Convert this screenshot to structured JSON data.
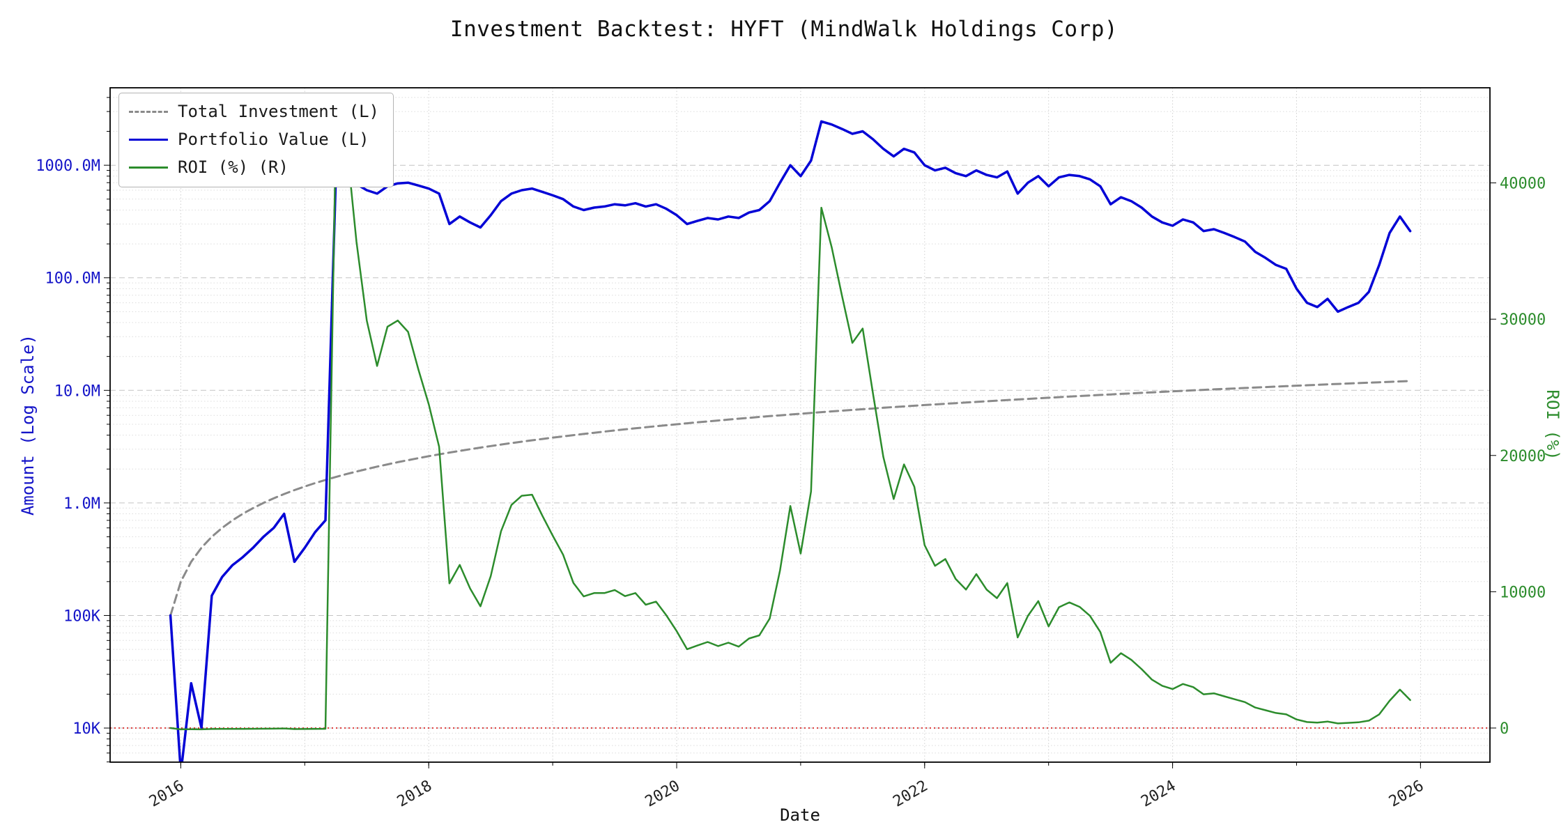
{
  "title": "Investment Backtest: HYFT (MindWalk Holdings Corp)",
  "axes": {
    "x_label": "Date",
    "left_label": "Amount (Log Scale)",
    "right_label": "ROI (%)"
  },
  "colors": {
    "portfolio": "#0404d6",
    "investment": "#8a8a8a",
    "roi": "#2c8c2c",
    "zero_line": "#d40000",
    "left_axis_text": "#1414c8",
    "right_axis_text": "#2c8c2c"
  },
  "legend": [
    {
      "label": "Total Investment (L)",
      "color": "#8a8a8a",
      "dash": true
    },
    {
      "label": "Portfolio Value (L)",
      "color": "#0404d6",
      "dash": false
    },
    {
      "label": "ROI (%) (R)",
      "color": "#2c8c2c",
      "dash": false
    }
  ],
  "chart_data": {
    "type": "line",
    "title": "Investment Backtest: HYFT (MindWalk Holdings Corp)",
    "xlabel": "Date",
    "x_start": 2015.917,
    "x_step": 0.0833333,
    "x_axis_range": [
      2015.43,
      2026.56
    ],
    "grid_years": [
      2016,
      2017,
      2018,
      2019,
      2020,
      2021,
      2022,
      2023,
      2024,
      2025,
      2026
    ],
    "x_ticks": [
      {
        "label": "2016",
        "value": 2016
      },
      {
        "label": "2018",
        "value": 2018
      },
      {
        "label": "2020",
        "value": 2020
      },
      {
        "label": "2022",
        "value": 2022
      },
      {
        "label": "2024",
        "value": 2024
      },
      {
        "label": "2026",
        "value": 2026
      }
    ],
    "left_axis": {
      "scale": "log",
      "range_log10": [
        3.697,
        9.688
      ],
      "ticks": [
        {
          "label": "10K",
          "value": 10000
        },
        {
          "label": "100K",
          "value": 100000
        },
        {
          "label": "1.0M",
          "value": 1000000
        },
        {
          "label": "10.0M",
          "value": 10000000
        },
        {
          "label": "100.0M",
          "value": 100000000
        },
        {
          "label": "1000.0M",
          "value": 1000000000
        }
      ]
    },
    "right_axis": {
      "scale": "linear",
      "range": [
        -2505,
        46980
      ],
      "ticks": [
        {
          "label": "0",
          "value": 0
        },
        {
          "label": "10000",
          "value": 10000
        },
        {
          "label": "20000",
          "value": 20000
        },
        {
          "label": "30000",
          "value": 30000
        },
        {
          "label": "40000",
          "value": 40000
        }
      ]
    },
    "zero_line": {
      "axis": "right",
      "value": 0
    },
    "left_values_unit": "USD millions",
    "right_values_unit": "percent",
    "series": [
      {
        "id": "investment",
        "name": "Total Investment (L)",
        "axis": "left",
        "scale": 1000000,
        "color": "#8a8a8a",
        "values": [
          0.1,
          0.2,
          0.3,
          0.4,
          0.5,
          0.6,
          0.7,
          0.8,
          0.9,
          1.0,
          1.1,
          1.2,
          1.3,
          1.4,
          1.5,
          1.6,
          1.7,
          1.8,
          1.9,
          2.0,
          2.1,
          2.2,
          2.3,
          2.4,
          2.5,
          2.6,
          2.7,
          2.8,
          2.9,
          3.0,
          3.1,
          3.2,
          3.3,
          3.4,
          3.5,
          3.6,
          3.7,
          3.8,
          3.9,
          4.0,
          4.1,
          4.2,
          4.3,
          4.4,
          4.5,
          4.6,
          4.7,
          4.8,
          4.9,
          5.0,
          5.1,
          5.2,
          5.3,
          5.4,
          5.5,
          5.6,
          5.7,
          5.8,
          5.9,
          6.0,
          6.1,
          6.2,
          6.3,
          6.4,
          6.5,
          6.6,
          6.7,
          6.8,
          6.9,
          7.0,
          7.1,
          7.2,
          7.3,
          7.4,
          7.5,
          7.6,
          7.7,
          7.8,
          7.9,
          8.0,
          8.1,
          8.2,
          8.3,
          8.4,
          8.5,
          8.6,
          8.7,
          8.8,
          8.9,
          9.0,
          9.1,
          9.2,
          9.3,
          9.4,
          9.5,
          9.6,
          9.7,
          9.8,
          9.9,
          10.0,
          10.1,
          10.2,
          10.3,
          10.4,
          10.5,
          10.6,
          10.7,
          10.8,
          10.9,
          11.0,
          11.1,
          11.2,
          11.3,
          11.4,
          11.5,
          11.6,
          11.7,
          11.8,
          11.9,
          12.0,
          12.1
        ]
      },
      {
        "id": "portfolio",
        "name": "Portfolio Value (L)",
        "axis": "left",
        "scale": 1000000,
        "color": "#0404d6",
        "values": [
          0.1,
          0.004,
          0.025,
          0.01,
          0.15,
          0.22,
          0.28,
          0.33,
          0.4,
          0.5,
          0.6,
          0.8,
          0.3,
          0.4,
          0.55,
          0.7,
          740,
          780,
          680,
          600,
          560,
          650,
          690,
          700,
          660,
          620,
          560,
          300,
          350,
          310,
          280,
          360,
          480,
          560,
          600,
          620,
          580,
          540,
          500,
          430,
          400,
          420,
          430,
          450,
          440,
          460,
          430,
          450,
          410,
          360,
          300,
          320,
          340,
          330,
          350,
          340,
          380,
          400,
          480,
          700,
          1000,
          800,
          1100,
          2450,
          2300,
          2100,
          1900,
          2000,
          1700,
          1400,
          1200,
          1400,
          1300,
          1000,
          900,
          950,
          850,
          800,
          900,
          820,
          780,
          880,
          560,
          700,
          800,
          650,
          780,
          820,
          800,
          750,
          650,
          450,
          520,
          480,
          420,
          350,
          310,
          290,
          330,
          310,
          260,
          270,
          250,
          230,
          210,
          170,
          150,
          130,
          120,
          80,
          60,
          55,
          65,
          50,
          55,
          60,
          75,
          130,
          250,
          350,
          260
        ]
      },
      {
        "id": "roi",
        "name": "ROI (%) (R)",
        "axis": "right",
        "scale": 1,
        "color": "#2c8c2c",
        "values": [
          0,
          -98,
          -92,
          -98,
          -70,
          -63,
          -60,
          -59,
          -56,
          -50,
          -45,
          -33,
          -77,
          -71,
          -63,
          -56,
          43429,
          43233,
          35689,
          29900,
          26567,
          29445,
          29900,
          29067,
          26300,
          23746,
          20641,
          10614,
          11969,
          10233,
          8932,
          11150,
          14445,
          16371,
          17043,
          17122,
          15576,
          14111,
          12721,
          10650,
          9656,
          9900,
          9900,
          10127,
          9678,
          9900,
          9049,
          9275,
          8267,
          7100,
          5782,
          6054,
          6315,
          6011,
          6264,
          5971,
          6567,
          6797,
          8036,
          11567,
          16293,
          12803,
          17360,
          38181,
          35285,
          31718,
          28258,
          29312,
          24538,
          19900,
          16801,
          19344,
          17708,
          13414,
          11900,
          12400,
          10939,
          10156,
          11292,
          10150,
          9530,
          10632,
          6647,
          8233,
          9312,
          7458,
          8866,
          9218,
          8889,
          8233,
          7043,
          4791,
          5491,
          5006,
          4321,
          3546,
          3096,
          2859,
          3233,
          3000,
          2474,
          2547,
          2327,
          2112,
          1900,
          1504,
          1302,
          1104,
          1001,
          627,
          441,
          391,
          475,
          339,
          378,
          417,
          541,
          1002,
          2001,
          2817,
          2049
        ]
      }
    ]
  }
}
